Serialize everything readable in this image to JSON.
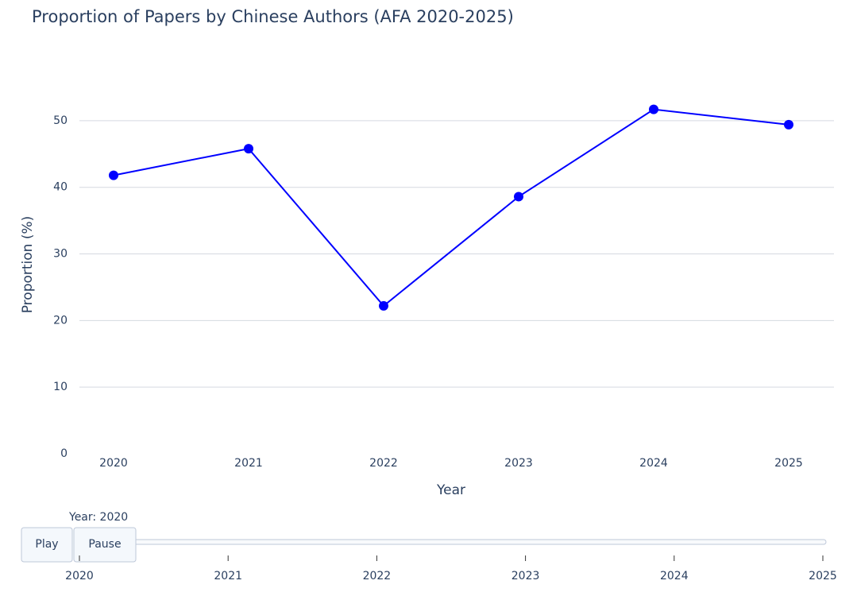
{
  "chart_data": {
    "type": "line",
    "title": "Proportion of Papers by Chinese Authors (AFA 2020-2025)",
    "x_label": "Year",
    "y_label": "Proportion (%)",
    "categories": [
      "2020",
      "2021",
      "2022",
      "2023",
      "2024",
      "2025"
    ],
    "values": [
      41.8,
      45.8,
      22.2,
      38.6,
      51.7,
      49.4
    ],
    "color": "#0000ff",
    "ylim": [
      0,
      54.4
    ],
    "yticks": [
      0,
      10,
      20,
      30,
      40,
      50
    ],
    "grid": true
  },
  "animation_controls": {
    "slider_label": "Year: 2020",
    "buttons": [
      "Play",
      "Pause"
    ],
    "slider_steps": [
      "2020",
      "2021",
      "2022",
      "2023",
      "2024",
      "2025"
    ]
  }
}
